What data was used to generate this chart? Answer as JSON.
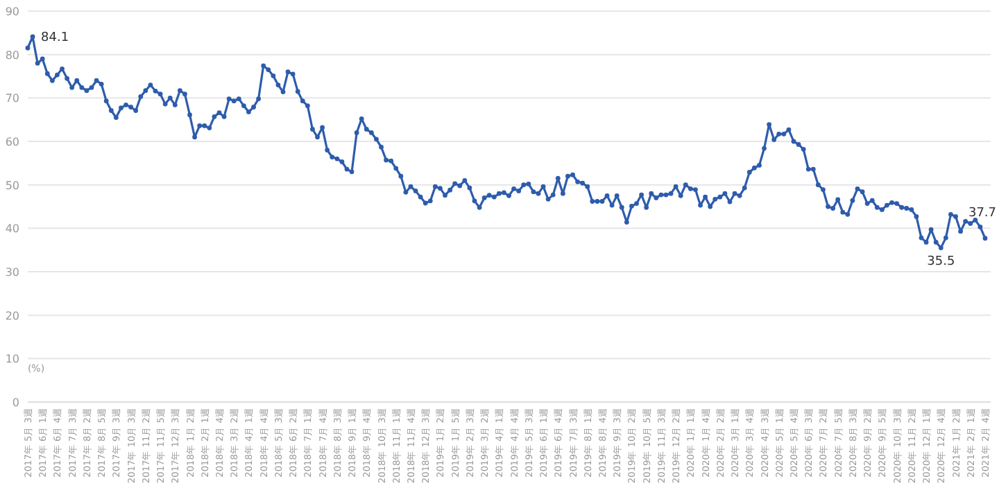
{
  "chart_data": {
    "type": "line",
    "ylabel": "(%)",
    "ylim": [
      0,
      90
    ],
    "yticks": [
      0,
      10,
      20,
      30,
      40,
      50,
      60,
      70,
      80,
      90
    ],
    "grid": "y",
    "marker": "circle",
    "color": "#2e5cac",
    "categories": [
      "2017年 5月 3週",
      null,
      null,
      "2017年 6月 1週",
      null,
      null,
      "2017年 6月 4週",
      null,
      null,
      "2017年 7月 3週",
      null,
      null,
      "2017年 8月 2週",
      null,
      null,
      "2017年 8月 5週",
      null,
      null,
      "2017年 9月 3週",
      null,
      null,
      "2017年 10月 3週",
      null,
      null,
      "2017年 11月 2週",
      null,
      null,
      "2017年 11月 5週",
      null,
      null,
      "2017年 12月 3週",
      null,
      null,
      "2018年 1月 2週",
      null,
      null,
      "2018年 2月 1週",
      null,
      null,
      "2018年 2月 4週",
      null,
      null,
      "2018年 3月 2週",
      null,
      null,
      "2018年 4月 1週",
      null,
      null,
      "2018年 4月 4週",
      null,
      null,
      "2018年 5月 3週",
      null,
      null,
      "2018年 6月 2週",
      null,
      null,
      "2018年 7月 1週",
      null,
      null,
      "2018年 7月 4週",
      null,
      null,
      "2018年 8月 3週",
      null,
      null,
      "2018年 9月 1週",
      null,
      null,
      "2018年 9月 4週",
      null,
      null,
      "2018年 10月 3週",
      null,
      null,
      "2018年 11月 1週",
      null,
      null,
      "2018年 11月 4週",
      null,
      null,
      "2018年 12月 3週",
      null,
      null,
      "2019年 1月 2週",
      null,
      null,
      "2019年 1月 5週",
      null,
      null,
      "2019年 2月 3週",
      null,
      null,
      "2019年 3月 2週",
      null,
      null,
      "2019年 4月 1週",
      null,
      null,
      "2019年 4月 4週",
      null,
      null,
      "2019年 5月 3週",
      null,
      null,
      "2019年 6月 1週",
      null,
      null,
      "2019年 6月 4週",
      null,
      null,
      "2019年 7月 3週",
      null,
      null,
      "2019年 8月 1週",
      null,
      null,
      "2019年 8月 4週",
      null,
      null,
      "2019年 9月 3週",
      null,
      null,
      "2019年 10月 2週",
      null,
      null,
      "2019年 10月 5週",
      null,
      null,
      "2019年 11月 3週",
      null,
      null,
      "2019年 12月 2週",
      null,
      null,
      "2020年 1月 1週",
      null,
      null,
      "2020年 1月 4週",
      null,
      null,
      "2020年 2月 2週",
      null,
      null,
      "2020年 3月 1週",
      null,
      null,
      "2020年 3月 4週",
      null,
      null,
      "2020年 4月 3週",
      null,
      null,
      "2020年 5月 1週",
      null,
      null,
      "2020年 5月 4週",
      null,
      null,
      "2020年 6月 3週",
      null,
      null,
      "2020年 7月 2週",
      null,
      null,
      "2020年 7月 5週",
      null,
      null,
      "2020年 8月 3週",
      null,
      null,
      "2020年 9月 2週",
      null,
      null,
      "2020年 9月 5週",
      null,
      null,
      "2020年 10月 3週",
      null,
      null,
      "2020年 11月 2週",
      null,
      null,
      "2020年 12月 1週",
      null,
      null,
      "2020年 12月 4週",
      null,
      null,
      "2021年 1月 2週",
      null,
      null,
      "2021年 2月 1週",
      null,
      null,
      "2021年 2月 4週"
    ],
    "values": [
      81.5,
      84.1,
      78,
      79,
      75.6,
      74,
      75.3,
      76.7,
      74.5,
      72.4,
      74,
      72.4,
      71.7,
      72.4,
      74,
      73.2,
      69.3,
      67.1,
      65.5,
      67.7,
      68.4,
      67.9,
      67.1,
      70.3,
      71.7,
      73,
      71.6,
      70.9,
      68.6,
      70,
      68.4,
      71.7,
      70.9,
      66.1,
      61,
      63.6,
      63.6,
      63.1,
      65.7,
      66.6,
      65.7,
      69.8,
      69.3,
      69.8,
      68.2,
      66.8,
      67.9,
      69.8,
      77.4,
      76.5,
      75.1,
      73,
      71.4,
      76,
      75.5,
      71.5,
      69.3,
      68.2,
      62.8,
      61,
      63.2,
      58,
      56.4,
      56,
      55.3,
      53.6,
      53,
      62,
      65.2,
      62.8,
      62,
      60.5,
      58.7,
      55.7,
      55.5,
      53.8,
      52,
      48.3,
      49.6,
      48.6,
      47.2,
      45.8,
      46.3,
      49.6,
      49.2,
      47.6,
      48.8,
      50.3,
      49.8,
      51,
      49.3,
      46.3,
      44.8,
      47,
      47.6,
      47.2,
      48,
      48.2,
      47.5,
      49.1,
      48.6,
      50,
      50.2,
      48.4,
      48,
      49.6,
      46.7,
      47.7,
      51.5,
      48,
      52,
      52.3,
      50.7,
      50.4,
      49.6,
      46.2,
      46.2,
      46.2,
      47.5,
      45.3,
      47.5,
      44.8,
      41.4,
      45.1,
      45.7,
      47.7,
      44.8,
      48,
      47,
      47.7,
      47.7,
      48,
      49.6,
      47.5,
      50,
      49.1,
      48.9,
      45.3,
      47.2,
      45,
      46.7,
      47.2,
      48,
      46.1,
      48,
      47.5,
      49.3,
      52.9,
      53.9,
      54.5,
      58.4,
      63.9,
      60.4,
      61.7,
      61.7,
      62.7,
      60,
      59.3,
      58.2,
      53.6,
      53.6,
      50,
      48.9,
      45,
      44.6,
      46.6,
      43.7,
      43.2,
      46.4,
      49.1,
      48.4,
      45.7,
      46.4,
      44.8,
      44.3,
      45.3,
      45.9,
      45.7,
      44.8,
      44.6,
      44.3,
      42.7,
      37.8,
      36.8,
      39.7,
      36.8,
      35.5,
      37.8,
      43.2,
      42.7,
      39.3,
      41.6,
      41.1,
      41.9,
      40.3,
      37.7
    ],
    "value_labels": [
      null,
      "84.1",
      null,
      null,
      null,
      null,
      null,
      null,
      null,
      null,
      null,
      null,
      null,
      null,
      null,
      null,
      null,
      null,
      null,
      null,
      null,
      null,
      null,
      null,
      null,
      null,
      null,
      null,
      null,
      null,
      null,
      null,
      null,
      null,
      null,
      null,
      null,
      null,
      null,
      null,
      null,
      null,
      null,
      null,
      null,
      null,
      null,
      null,
      null,
      null,
      null,
      null,
      null,
      null,
      null,
      null,
      null,
      null,
      null,
      null,
      null,
      null,
      null,
      null,
      null,
      null,
      null,
      null,
      null,
      null,
      null,
      null,
      null,
      null,
      null,
      null,
      null,
      null,
      null,
      null,
      null,
      null,
      null,
      null,
      null,
      null,
      null,
      null,
      null,
      null,
      null,
      null,
      null,
      null,
      null,
      null,
      null,
      null,
      null,
      null,
      null,
      null,
      null,
      null,
      null,
      null,
      null,
      null,
      null,
      null,
      null,
      null,
      null,
      null,
      null,
      null,
      null,
      null,
      null,
      null,
      null,
      null,
      null,
      null,
      null,
      null,
      null,
      null,
      null,
      null,
      null,
      null,
      null,
      null,
      null,
      null,
      null,
      null,
      null,
      null,
      null,
      null,
      null,
      null,
      null,
      null,
      null,
      null,
      null,
      null,
      null,
      null,
      null,
      null,
      null,
      null,
      null,
      null,
      null,
      null,
      null,
      null,
      null,
      null,
      null,
      null,
      null,
      null,
      null,
      null,
      null,
      null,
      null,
      null,
      null,
      null,
      null,
      null,
      null,
      null,
      null,
      null,
      null,
      null,
      null,
      null,
      "35.5",
      null,
      null,
      null,
      null,
      null,
      null,
      null,
      null,
      "37.7"
    ]
  }
}
